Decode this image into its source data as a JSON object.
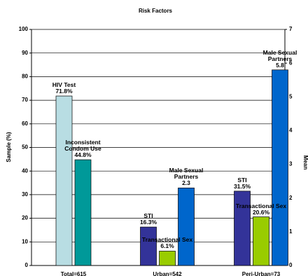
{
  "chart_data": {
    "type": "bar",
    "title": "Risk Factors",
    "y_label": "Sample (%)",
    "y2_label": "Mean",
    "categories": [
      "Total=615",
      "Urban=542",
      "Peri-Urban=73"
    ],
    "series": [
      {
        "name": "HIV Test",
        "color": "#b8dde3",
        "values": [
          71.8,
          null,
          null
        ],
        "value_labels": [
          "71.8%",
          null,
          null
        ]
      },
      {
        "name": "Inconsistent Condom Use",
        "color": "#009999",
        "values": [
          44.8,
          null,
          null
        ],
        "value_labels": [
          "44.8%",
          null,
          null
        ]
      },
      {
        "name": "STI",
        "color": "#333399",
        "values": [
          null,
          16.3,
          31.5
        ],
        "value_labels": [
          null,
          "16.3%",
          "31.5%"
        ]
      },
      {
        "name": "Transactional Sex",
        "color": "#99cc00",
        "values": [
          null,
          6.1,
          20.6
        ],
        "value_labels": [
          null,
          "6.1%",
          "20.6%"
        ]
      },
      {
        "name": "Male Sexual Partners",
        "color": "#0066cc",
        "axis": "y2",
        "values": [
          null,
          2.3,
          5.8
        ]
      }
    ],
    "ylim": [
      0,
      100
    ],
    "yticks": [
      0,
      10,
      20,
      30,
      40,
      50,
      60,
      70,
      80,
      90,
      100
    ],
    "y2lim": [
      0,
      7
    ],
    "y2ticks": [
      0,
      1,
      2,
      3,
      4,
      5,
      6,
      7
    ],
    "grid": true
  }
}
